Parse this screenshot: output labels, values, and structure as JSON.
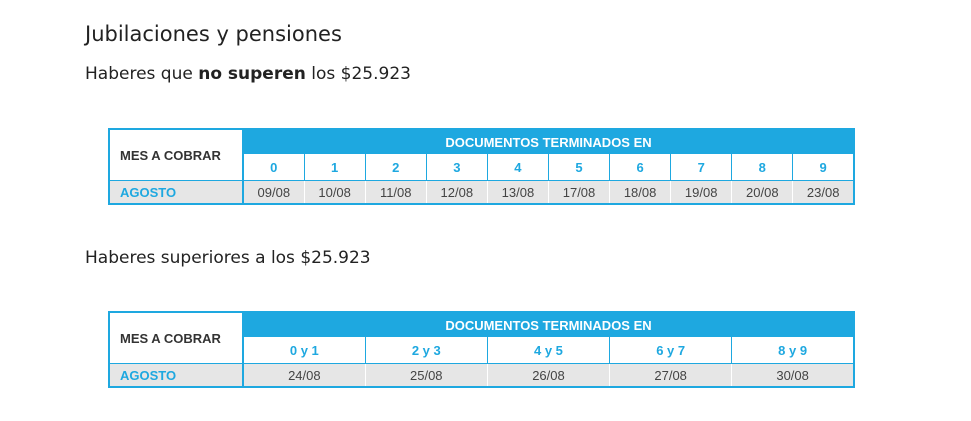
{
  "title": "Jubilaciones y pensiones",
  "sections": [
    {
      "heading": [
        {
          "text": "Haberes que ",
          "bold": false
        },
        {
          "text": "no superen",
          "bold": true
        },
        {
          "text": " los $25.923",
          "bold": false
        }
      ],
      "table": {
        "row_header": "MES A COBRAR",
        "group_header": "DOCUMENTOS TERMINADOS EN",
        "columns": [
          "0",
          "1",
          "2",
          "3",
          "4",
          "5",
          "6",
          "7",
          "8",
          "9"
        ],
        "rows": [
          {
            "label": "AGOSTO",
            "cells": [
              "09/08",
              "10/08",
              "11/08",
              "12/08",
              "13/08",
              "17/08",
              "18/08",
              "19/08",
              "20/08",
              "23/08"
            ]
          }
        ]
      }
    },
    {
      "heading": [
        {
          "text": "Haberes superiores a los $25.923",
          "bold": false
        }
      ],
      "table": {
        "row_header": "MES A COBRAR",
        "group_header": "DOCUMENTOS TERMINADOS EN",
        "columns": [
          "0 y 1",
          "2 y 3",
          "4 y 5",
          "6 y 7",
          "8 y 9"
        ],
        "rows": [
          {
            "label": "AGOSTO",
            "cells": [
              "24/08",
              "25/08",
              "26/08",
              "27/08",
              "30/08"
            ]
          }
        ]
      }
    }
  ]
}
